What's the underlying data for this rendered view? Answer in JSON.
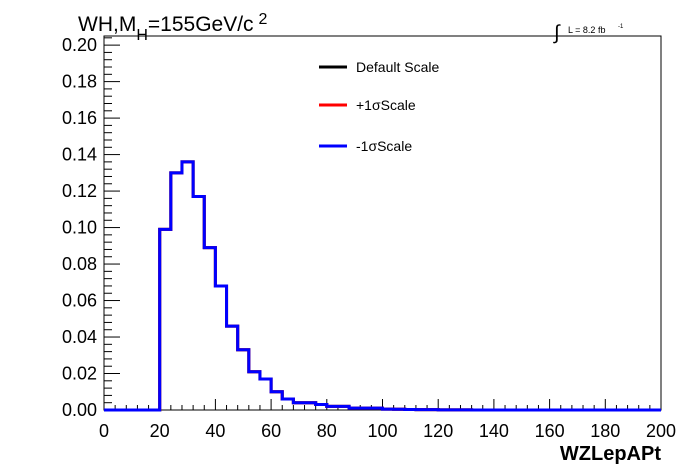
{
  "chart_data": {
    "type": "line",
    "title": "WH,M",
    "title_sub": "H",
    "title_rest": "=155GeV/c",
    "title_sup": "2",
    "lumi": {
      "prefix": "∫",
      "text": "L = 8.2 fb",
      "sup": "-1"
    },
    "xlabel": "WZLepAPt",
    "ylabel": "",
    "xlim": [
      0,
      200
    ],
    "ylim": [
      0,
      0.205
    ],
    "xticks": [
      0,
      20,
      40,
      60,
      80,
      100,
      120,
      140,
      160,
      180,
      200
    ],
    "xtick_labels": [
      "0",
      "20",
      "40",
      "60",
      "80",
      "100",
      "120",
      "140",
      "160",
      "180",
      "200"
    ],
    "yticks": [
      0,
      0.02,
      0.04,
      0.06,
      0.08,
      0.1,
      0.12,
      0.14,
      0.16,
      0.18,
      0.2
    ],
    "ytick_labels": [
      "0.00",
      "0.02",
      "0.04",
      "0.06",
      "0.08",
      "0.10",
      "0.12",
      "0.14",
      "0.16",
      "0.18",
      "0.20"
    ],
    "bin_edges": [
      0,
      4,
      8,
      12,
      16,
      20,
      24,
      28,
      32,
      36,
      40,
      44,
      48,
      52,
      56,
      60,
      64,
      68,
      72,
      76,
      80,
      84,
      88,
      92,
      96,
      100,
      104,
      108,
      112,
      116,
      120,
      124,
      128,
      132,
      136,
      140,
      144,
      148,
      152,
      156,
      160,
      164,
      168,
      172,
      176,
      180,
      184,
      188,
      192,
      196,
      200
    ],
    "grid": false,
    "legend_position": "top-center",
    "series": [
      {
        "name": "Default Scale",
        "color": "#000000",
        "values": [
          0,
          0,
          0,
          0,
          0,
          0.099,
          0.13,
          0.136,
          0.117,
          0.089,
          0.068,
          0.046,
          0.033,
          0.021,
          0.017,
          0.01,
          0.006,
          0.004,
          0.004,
          0.003,
          0.002,
          0.002,
          0.001,
          0.001,
          0.001,
          0.0005,
          0.0004,
          0.0003,
          0.0002,
          0.0002,
          0.0001,
          0.0001,
          0.0001,
          0,
          0,
          0,
          0,
          0,
          0,
          0,
          0,
          0,
          0,
          0,
          0,
          0,
          0,
          0,
          0,
          0
        ]
      },
      {
        "name": "+1σScale",
        "color": "#ff0000",
        "values": [
          0,
          0,
          0,
          0,
          0,
          0.099,
          0.13,
          0.136,
          0.117,
          0.089,
          0.068,
          0.046,
          0.033,
          0.021,
          0.017,
          0.01,
          0.006,
          0.004,
          0.004,
          0.003,
          0.002,
          0.002,
          0.001,
          0.001,
          0.001,
          0.0005,
          0.0004,
          0.0003,
          0.0002,
          0.0002,
          0.0001,
          0.0001,
          0.0001,
          0,
          0,
          0,
          0,
          0,
          0,
          0,
          0,
          0,
          0,
          0,
          0,
          0,
          0,
          0,
          0,
          0
        ]
      },
      {
        "name": "-1σScale",
        "color": "#0000ff",
        "values": [
          0,
          0,
          0,
          0,
          0,
          0.099,
          0.13,
          0.136,
          0.117,
          0.089,
          0.068,
          0.046,
          0.033,
          0.021,
          0.017,
          0.01,
          0.006,
          0.004,
          0.004,
          0.003,
          0.002,
          0.002,
          0.001,
          0.001,
          0.001,
          0.0005,
          0.0004,
          0.0003,
          0.0002,
          0.0002,
          0.0001,
          0.0001,
          0.0001,
          0,
          0,
          0,
          0,
          0,
          0,
          0,
          0,
          0,
          0,
          0,
          0,
          0,
          0,
          0,
          0,
          0
        ]
      }
    ]
  }
}
